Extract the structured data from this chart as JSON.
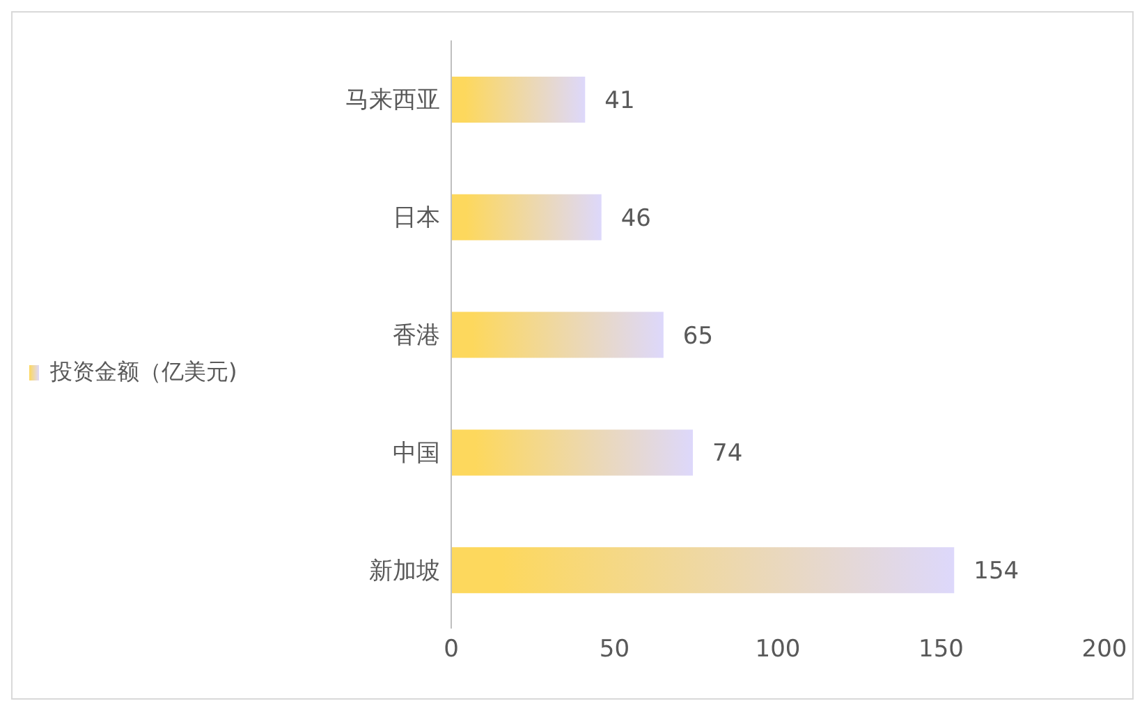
{
  "chart_data": {
    "type": "bar",
    "orientation": "horizontal",
    "categories": [
      "马来西亚",
      "日本",
      "香港",
      "中国",
      "新加坡"
    ],
    "series": [
      {
        "name": "投资金额（亿美元)",
        "color": "#fdd85d",
        "values": [
          41,
          46,
          65,
          74,
          154
        ]
      }
    ],
    "xlim": [
      0,
      200
    ],
    "xticks": [
      0,
      50,
      100,
      150,
      200
    ],
    "data_labels": true,
    "legend": "left",
    "grid": false
  }
}
